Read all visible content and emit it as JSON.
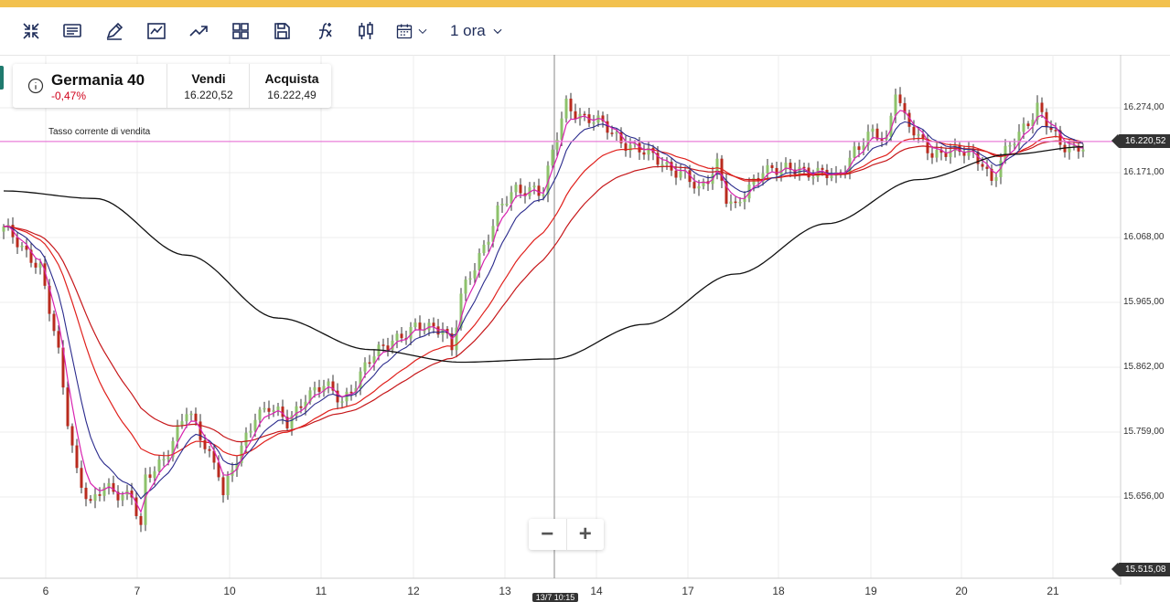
{
  "toolbar": {
    "icons": [
      "collapse-icon",
      "notes-icon",
      "draw-icon",
      "chart-line-icon",
      "trend-icon",
      "layout-grid-icon",
      "save-icon",
      "function-icon",
      "candles-icon",
      "calendar-icon"
    ],
    "timeframe": "1 ora"
  },
  "quote": {
    "name": "Germania 40",
    "change": "-0,47%",
    "sell_label": "Vendi",
    "sell_value": "16.220,52",
    "buy_label": "Acquista",
    "buy_value": "16.222,49"
  },
  "current_rate_label": "Tasso corrente di vendita",
  "colors": {
    "up_candle": "#8dc26b",
    "down_candle": "#b92b1e",
    "ma_fast": "#d822b0",
    "ma_mid": "#2a2a8c",
    "ma_slow1": "#e0201c",
    "ma_slow2": "#c6171a",
    "ma_long": "#111111",
    "current_line": "#e87fd8"
  },
  "chart_data": {
    "type": "candlestick",
    "timeframe": "1 ora",
    "current_price": 16220.52,
    "y_ticks": [
      16274,
      16171,
      16068,
      15965,
      15862,
      15759,
      15656
    ],
    "y_tick_labels": [
      "16.274,00",
      "16.171,00",
      "16.068,00",
      "15.965,00",
      "15.862,00",
      "15.759,00",
      "15.656,00"
    ],
    "y_min_label": "15.515,08",
    "y_min": 15515.08,
    "current_price_label": "16.220,52",
    "x_ticks": [
      "6",
      "7",
      "10",
      "11",
      "12",
      "13",
      "14",
      "17",
      "18",
      "19",
      "20",
      "21"
    ],
    "crosshair_label": "13/7 10:15",
    "path_anchors": [
      [
        0,
        16080
      ],
      [
        6,
        16040
      ],
      [
        8,
        16020
      ],
      [
        12,
        15880
      ],
      [
        14,
        15780
      ],
      [
        16,
        15700
      ],
      [
        19,
        15640
      ],
      [
        22,
        15670
      ],
      [
        28,
        15660
      ],
      [
        30,
        15600
      ],
      [
        31,
        15680
      ],
      [
        35,
        15720
      ],
      [
        40,
        15790
      ],
      [
        44,
        15740
      ],
      [
        47,
        15700
      ],
      [
        48,
        15660
      ],
      [
        52,
        15730
      ],
      [
        55,
        15790
      ],
      [
        58,
        15800
      ],
      [
        62,
        15770
      ],
      [
        66,
        15820
      ],
      [
        70,
        15830
      ],
      [
        74,
        15810
      ],
      [
        77,
        15840
      ],
      [
        80,
        15870
      ],
      [
        85,
        15910
      ],
      [
        90,
        15920
      ],
      [
        96,
        15930
      ],
      [
        98,
        15890
      ],
      [
        100,
        15970
      ],
      [
        104,
        16040
      ],
      [
        108,
        16110
      ],
      [
        112,
        16140
      ],
      [
        116,
        16150
      ],
      [
        118,
        16140
      ],
      [
        120,
        16200
      ],
      [
        123,
        16280
      ],
      [
        127,
        16260
      ],
      [
        132,
        16240
      ],
      [
        136,
        16220
      ],
      [
        140,
        16200
      ],
      [
        144,
        16190
      ],
      [
        148,
        16170
      ],
      [
        152,
        16140
      ],
      [
        156,
        16190
      ],
      [
        158,
        16130
      ],
      [
        160,
        16110
      ],
      [
        164,
        16160
      ],
      [
        166,
        16180
      ],
      [
        170,
        16170
      ],
      [
        174,
        16180
      ],
      [
        178,
        16170
      ],
      [
        182,
        16160
      ],
      [
        186,
        16210
      ],
      [
        190,
        16230
      ],
      [
        193,
        16220
      ],
      [
        195,
        16310
      ],
      [
        197,
        16260
      ],
      [
        200,
        16220
      ],
      [
        203,
        16200
      ],
      [
        206,
        16210
      ],
      [
        210,
        16200
      ],
      [
        214,
        16190
      ],
      [
        216,
        16160
      ],
      [
        218,
        16190
      ],
      [
        222,
        16230
      ],
      [
        226,
        16280
      ],
      [
        228,
        16250
      ],
      [
        231,
        16210
      ],
      [
        234,
        16210
      ],
      [
        236,
        16220
      ]
    ],
    "long_ma_anchors": [
      [
        0,
        16142
      ],
      [
        20,
        16130
      ],
      [
        40,
        16040
      ],
      [
        60,
        15940
      ],
      [
        80,
        15890
      ],
      [
        100,
        15870
      ],
      [
        120,
        15875
      ],
      [
        140,
        15930
      ],
      [
        160,
        16010
      ],
      [
        180,
        16090
      ],
      [
        200,
        16160
      ],
      [
        220,
        16200
      ],
      [
        236,
        16212
      ]
    ],
    "axes": {
      "y_axis_side": "right",
      "grid": true
    },
    "moving_averages": [
      "fast",
      "mid",
      "slow",
      "slow2",
      "long"
    ]
  }
}
